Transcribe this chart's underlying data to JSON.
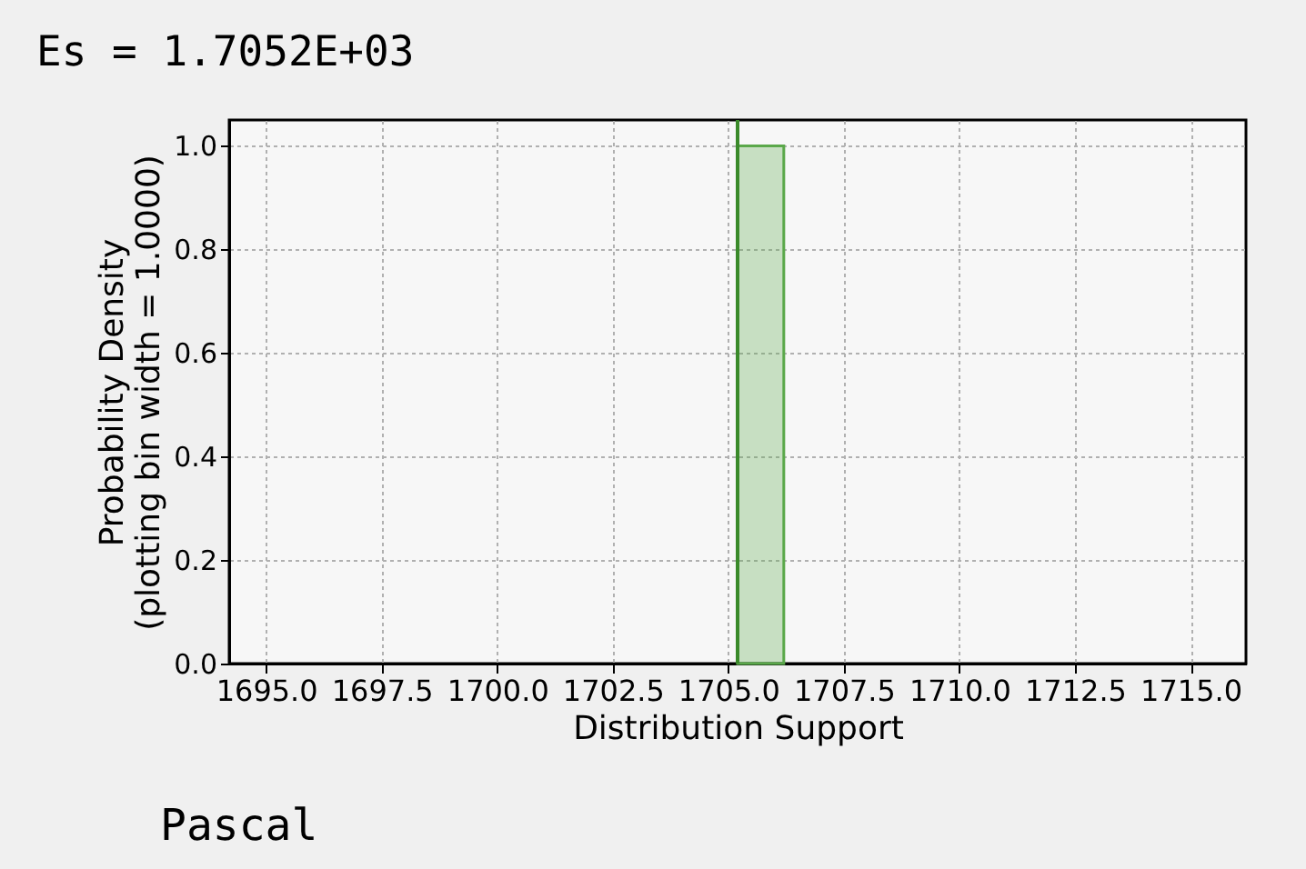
{
  "chart_data": {
    "type": "histogram",
    "title": "Es = 1.7052E+03",
    "xlabel": "Distribution Support",
    "ylabel": "Probability Density\n(plotting bin width = 1.0000)",
    "bins": [
      1705.2,
      1706.2
    ],
    "values": [
      1.0
    ],
    "color": "#5aa84a",
    "xlim": [
      1694.2,
      1716.2
    ],
    "ylim": [
      0,
      1.05
    ],
    "xticks": [
      {
        "value": 1695,
        "label": "1695.0"
      },
      {
        "value": 1697.5,
        "label": "1697.5"
      },
      {
        "value": 1700,
        "label": "1700.0"
      },
      {
        "value": 1702.5,
        "label": "1702.5"
      },
      {
        "value": 1705,
        "label": "1705.0"
      },
      {
        "value": 1707.5,
        "label": "1707.5"
      },
      {
        "value": 1710,
        "label": "1710.0"
      },
      {
        "value": 1712.5,
        "label": "1712.5"
      },
      {
        "value": 1715,
        "label": "1715.0"
      }
    ],
    "yticks": [
      {
        "value": 0,
        "label": "0.0"
      },
      {
        "value": 0.2,
        "label": "0.2"
      },
      {
        "value": 0.4,
        "label": "0.4"
      },
      {
        "value": 0.6,
        "label": "0.6"
      },
      {
        "value": 0.8,
        "label": "0.8"
      },
      {
        "value": 1.0,
        "label": "1.0"
      }
    ],
    "ref_lines": [
      {
        "axis": "x",
        "value": 1705.2,
        "color": "#3a8a2a"
      }
    ],
    "annotations": [
      "Pascal"
    ],
    "grid": true
  }
}
